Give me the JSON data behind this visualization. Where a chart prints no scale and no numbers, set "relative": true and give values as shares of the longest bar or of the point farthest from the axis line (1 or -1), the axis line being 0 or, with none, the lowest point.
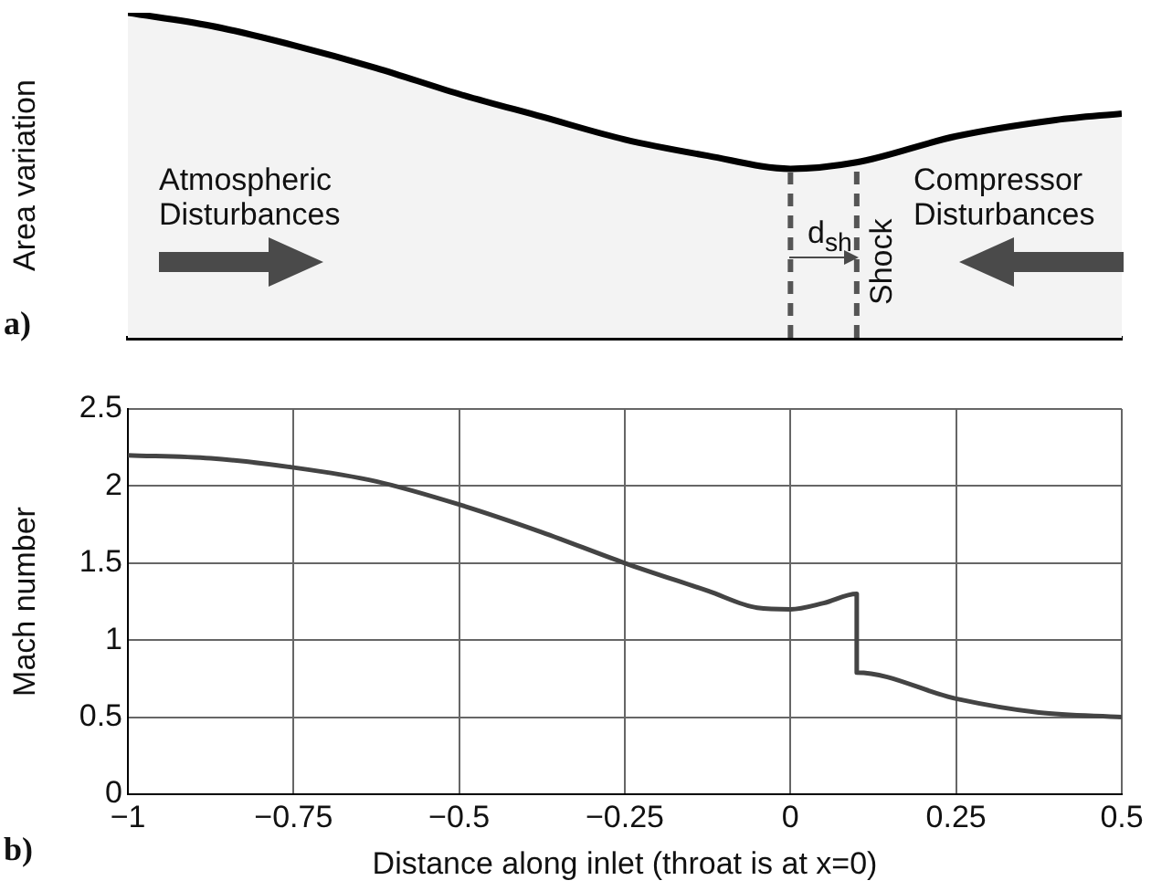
{
  "chart_data": [
    {
      "type": "area",
      "relative": true,
      "ylabel": "Area variation",
      "tick_labels": false,
      "grid": false,
      "legend": false,
      "series": [
        {
          "color": "#000000",
          "x": [
            -1,
            -0.875,
            -0.75,
            -0.625,
            -0.5,
            -0.375,
            -0.25,
            -0.125,
            0,
            0.1,
            0.25,
            0.4,
            0.5
          ],
          "values": [
            1.0,
            0.96,
            0.9,
            0.83,
            0.75,
            0.68,
            0.61,
            0.56,
            0.52,
            0.54,
            0.62,
            0.67,
            0.69
          ]
        }
      ],
      "xlim": [
        -1,
        0.5
      ],
      "ref_lines": [
        {
          "axis": "x",
          "value": 0,
          "color": "#555555",
          "line_style": "dashed"
        },
        {
          "axis": "x",
          "value": 0.1,
          "label": "Shock",
          "color": "#555555",
          "line_style": "dashed"
        }
      ],
      "annotations": [
        "a)",
        "Atmospheric Disturbances",
        "Compressor Disturbances",
        "d$_{sh}$"
      ]
    },
    {
      "type": "line",
      "xlabel": "Distance along inlet (throat is at x=0)",
      "ylabel": "Mach number",
      "grid": "true",
      "legend": false,
      "marker": "none",
      "line_style": "solid",
      "series": [
        {
          "color": "#444444",
          "x": [
            -1,
            -0.875,
            -0.75,
            -0.625,
            -0.5,
            -0.375,
            -0.25,
            -0.125,
            -0.05,
            0,
            0.05,
            0.1,
            0.1,
            0.25,
            0.375,
            0.5
          ],
          "values": [
            2.2,
            2.18,
            2.12,
            2.03,
            1.88,
            1.7,
            1.5,
            1.32,
            1.21,
            1.2,
            1.24,
            1.3,
            0.79,
            0.62,
            0.53,
            0.5
          ]
        }
      ],
      "xlim": [
        -1,
        0.5
      ],
      "xticks": [
        {
          "value": -1,
          "label": "−1"
        },
        {
          "value": -0.75,
          "label": "−0.75"
        },
        {
          "value": -0.5,
          "label": "−0.5"
        },
        {
          "value": -0.25,
          "label": "−0.25"
        },
        0,
        0.25,
        0.5
      ],
      "ylim": [
        0,
        2.5
      ],
      "yticks": [
        0,
        0.5,
        1,
        1.5,
        2,
        2.5
      ],
      "annotations": [
        "b)"
      ]
    }
  ]
}
